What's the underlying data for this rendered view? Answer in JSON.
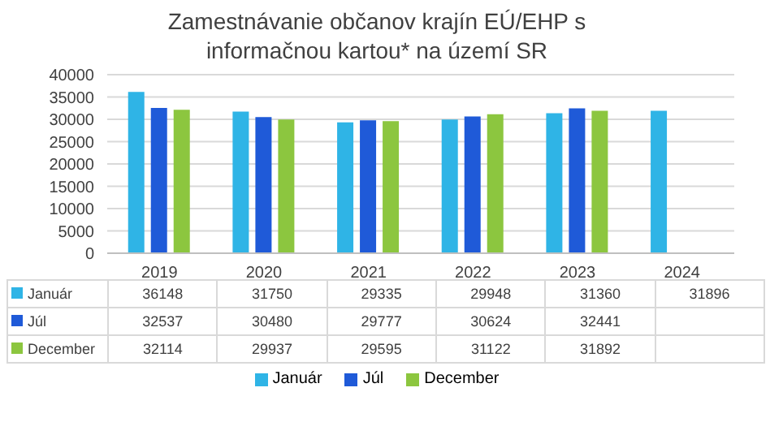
{
  "chart_data": {
    "type": "bar",
    "title": "Zamestnávanie občanov krajín EÚ/EHP s informačnou kartou* na území SR",
    "categories": [
      "2019",
      "2020",
      "2021",
      "2022",
      "2023",
      "2024"
    ],
    "series": [
      {
        "name": "Január",
        "color": "#2fb4e6",
        "values": [
          36148,
          31750,
          29335,
          29948,
          31360,
          31896
        ]
      },
      {
        "name": "Júl",
        "color": "#1f5ad8",
        "values": [
          32537,
          30480,
          29777,
          30624,
          32441,
          null
        ]
      },
      {
        "name": "December",
        "color": "#8cc63f",
        "values": [
          32114,
          29937,
          29595,
          31122,
          31892,
          null
        ]
      }
    ],
    "ylim": [
      0,
      40000
    ],
    "yticks": [
      0,
      5000,
      10000,
      15000,
      20000,
      25000,
      30000,
      35000,
      40000
    ],
    "grid": "y",
    "legend": "bottom",
    "data_labels": true
  }
}
